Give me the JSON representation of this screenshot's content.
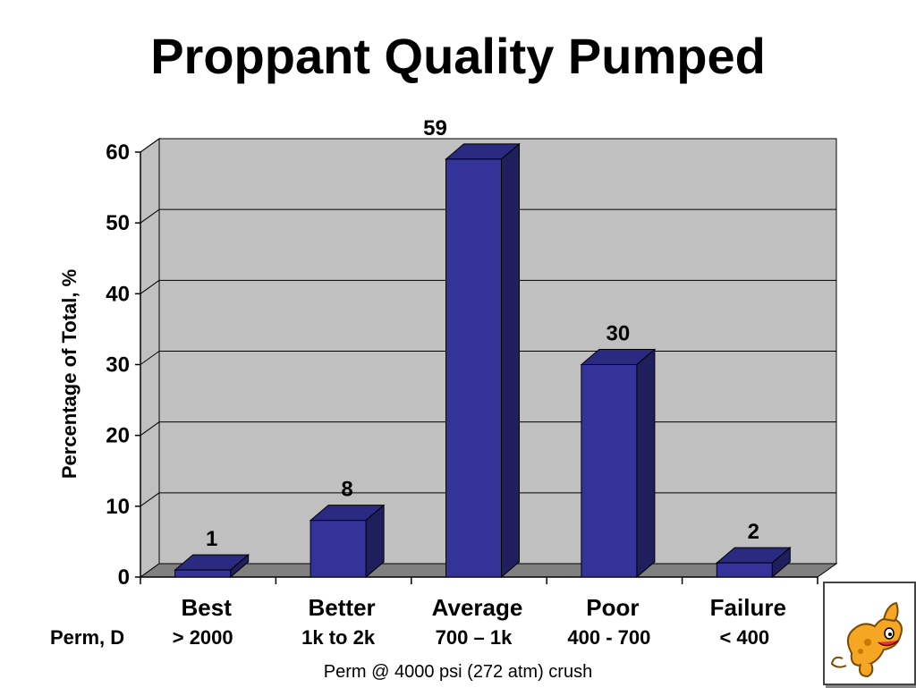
{
  "slide": {
    "title": "Proppant Quality Pumped",
    "perm_label": "Perm, D",
    "footnote": "Perm @ 4000 psi (272 atm) crush"
  },
  "chart_data": {
    "type": "bar",
    "title": "",
    "ylabel": "Percentage of Total, %",
    "xlabel": "",
    "ylim": [
      0,
      60
    ],
    "yticks": [
      0,
      10,
      20,
      30,
      40,
      50,
      60
    ],
    "grid": true,
    "categories": [
      "Best",
      "Better",
      "Average",
      "Poor",
      "Failure"
    ],
    "ranges": [
      "> 2000",
      "1k to 2k",
      "700 – 1k",
      "400 - 700",
      "< 400"
    ],
    "series": [
      {
        "values": [
          1,
          8,
          59,
          30,
          2
        ],
        "color": "#333399"
      }
    ],
    "data_labels": [
      "1",
      "8",
      "59",
      "30",
      "2"
    ],
    "colors": {
      "bar_front": "#333399",
      "bar_top": "#2a2a80",
      "bar_side": "#1f1f5e",
      "plot_wall": "#c0c0c0",
      "plot_floor": "#808080"
    }
  },
  "logo": {
    "icon": "cartoon-dog-icon"
  }
}
